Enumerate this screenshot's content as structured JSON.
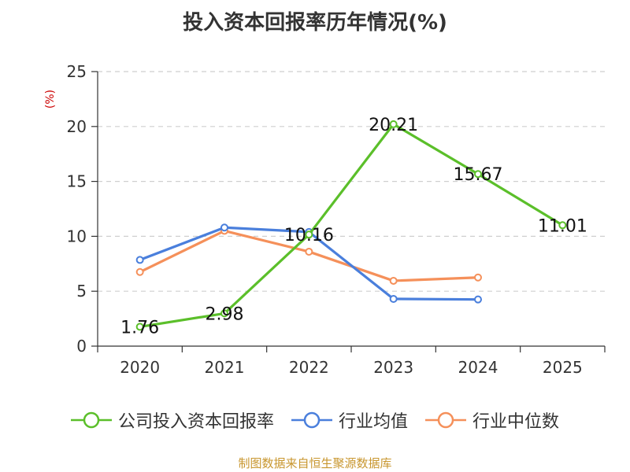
{
  "title": "投入资本回报率历年情况(%)",
  "source_note": "制图数据来自恒生聚源数据库",
  "chart_data": {
    "type": "line",
    "title": "投入资本回报率历年情况(%)",
    "xlabel": "",
    "ylabel": "(%)",
    "ylabel_color": "#cc0000",
    "categories": [
      "2020",
      "2021",
      "2022",
      "2023",
      "2024",
      "2025"
    ],
    "ylim": [
      0,
      25
    ],
    "yticks": [
      0,
      5,
      10,
      15,
      20,
      25
    ],
    "grid": true,
    "legend_position": "bottom",
    "series": [
      {
        "name": "公司投入资本回报率",
        "color": "#5bbf2a",
        "values": [
          1.76,
          2.98,
          10.16,
          20.21,
          15.67,
          11.01
        ],
        "labels": [
          "1.76",
          "2.98",
          "10.16",
          "20.21",
          "15.67",
          "11.01"
        ]
      },
      {
        "name": "行业均值",
        "color": "#4a7fdc",
        "values": [
          7.85,
          10.8,
          10.4,
          4.3,
          4.25,
          null
        ],
        "labels": []
      },
      {
        "name": "行业中位数",
        "color": "#f5905a",
        "values": [
          6.75,
          10.5,
          8.6,
          5.95,
          6.25,
          null
        ],
        "labels": []
      }
    ]
  }
}
